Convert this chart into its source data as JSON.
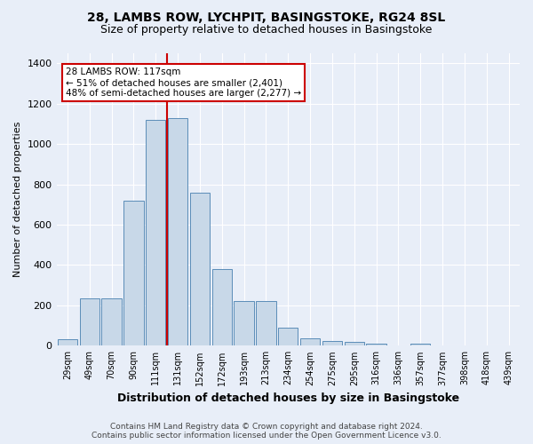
{
  "title": "28, LAMBS ROW, LYCHPIT, BASINGSTOKE, RG24 8SL",
  "subtitle": "Size of property relative to detached houses in Basingstoke",
  "xlabel": "Distribution of detached houses by size in Basingstoke",
  "ylabel": "Number of detached properties",
  "categories": [
    "29sqm",
    "49sqm",
    "70sqm",
    "90sqm",
    "111sqm",
    "131sqm",
    "152sqm",
    "172sqm",
    "193sqm",
    "213sqm",
    "234sqm",
    "254sqm",
    "275sqm",
    "295sqm",
    "316sqm",
    "336sqm",
    "357sqm",
    "377sqm",
    "398sqm",
    "418sqm",
    "439sqm"
  ],
  "values": [
    32,
    235,
    235,
    720,
    1120,
    1130,
    760,
    380,
    222,
    222,
    90,
    35,
    25,
    20,
    10,
    0,
    10,
    0,
    0,
    0,
    0
  ],
  "bar_color": "#c8d8e8",
  "bar_edge_color": "#5b8db8",
  "vline_color": "#cc0000",
  "annotation_text": "28 LAMBS ROW: 117sqm\n← 51% of detached houses are smaller (2,401)\n48% of semi-detached houses are larger (2,277) →",
  "annotation_box_color": "#ffffff",
  "annotation_box_edge": "#cc0000",
  "ylim": [
    0,
    1450
  ],
  "yticks": [
    0,
    200,
    400,
    600,
    800,
    1000,
    1200,
    1400
  ],
  "footer": "Contains HM Land Registry data © Crown copyright and database right 2024.\nContains public sector information licensed under the Open Government Licence v3.0.",
  "bg_color": "#e8eef8",
  "plot_bg_color": "#e8eef8",
  "title_fontsize": 10,
  "subtitle_fontsize": 9
}
